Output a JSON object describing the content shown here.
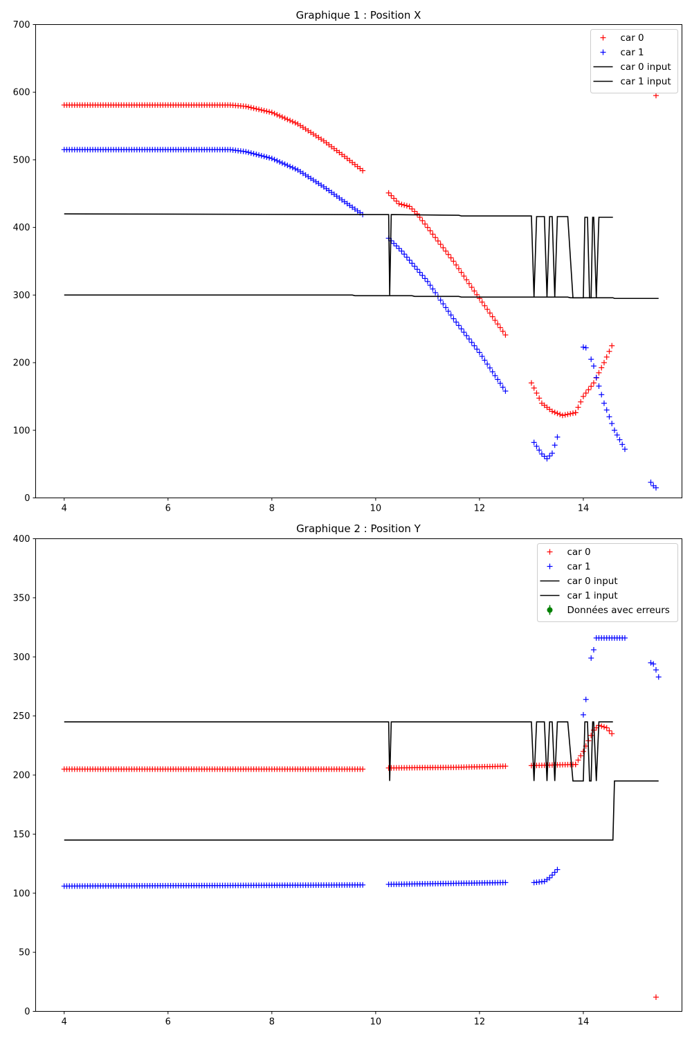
{
  "chart_data": [
    {
      "type": "scatter",
      "title": "Graphique 1 : Position X",
      "xlabel": "",
      "ylabel": "",
      "xlim": [
        3.45,
        15.9
      ],
      "ylim": [
        0,
        700
      ],
      "xticks": [
        4,
        6,
        8,
        10,
        12,
        14
      ],
      "yticks": [
        0,
        100,
        200,
        300,
        400,
        500,
        600,
        700
      ],
      "grid": false,
      "legend_position": "top-right",
      "legend": [
        "car 0",
        "car 1",
        "car 0 input",
        "car 1 input"
      ],
      "series": [
        {
          "name": "car 0",
          "kind": "marker",
          "marker": "+",
          "color": "#ff0000",
          "segments": [
            {
              "x_start": 4.0,
              "x_end": 9.75,
              "step": 0.05,
              "keys": [
                [
                  4.0,
                  581
                ],
                [
                  7.2,
                  581
                ],
                [
                  7.5,
                  579
                ],
                [
                  8.0,
                  570
                ],
                [
                  8.5,
                  553
                ],
                [
                  9.0,
                  528
                ],
                [
                  9.4,
                  505
                ],
                [
                  9.75,
                  484
                ]
              ]
            },
            {
              "x_start": 10.25,
              "x_end": 12.5,
              "step": 0.05,
              "keys": [
                [
                  10.25,
                  451
                ],
                [
                  10.45,
                  435
                ],
                [
                  10.65,
                  431
                ],
                [
                  10.8,
                  420
                ],
                [
                  11.0,
                  400
                ],
                [
                  11.5,
                  350
                ],
                [
                  12.0,
                  295
                ],
                [
                  12.5,
                  241
                ]
              ]
            },
            {
              "x_start": 13.0,
              "x_end": 13.85,
              "step": 0.05,
              "keys": [
                [
                  13.0,
                  170
                ],
                [
                  13.2,
                  140
                ],
                [
                  13.4,
                  128
                ],
                [
                  13.6,
                  122
                ],
                [
                  13.85,
                  126
                ]
              ]
            },
            {
              "x_start": 13.85,
              "x_end": 14.55,
              "step": 0.05,
              "keys": [
                [
                  13.85,
                  126
                ],
                [
                  14.0,
                  150
                ],
                [
                  14.2,
                  170
                ],
                [
                  14.4,
                  200
                ],
                [
                  14.55,
                  225
                ]
              ]
            }
          ],
          "points": [
            [
              15.4,
              595
            ]
          ]
        },
        {
          "name": "car 1",
          "kind": "marker",
          "marker": "+",
          "color": "#0000ff",
          "segments": [
            {
              "x_start": 4.0,
              "x_end": 9.75,
              "step": 0.05,
              "keys": [
                [
                  4.0,
                  515
                ],
                [
                  7.2,
                  515
                ],
                [
                  7.5,
                  512
                ],
                [
                  8.0,
                  502
                ],
                [
                  8.5,
                  485
                ],
                [
                  9.0,
                  460
                ],
                [
                  9.4,
                  438
                ],
                [
                  9.75,
                  419
                ]
              ]
            },
            {
              "x_start": 10.25,
              "x_end": 12.5,
              "step": 0.05,
              "keys": [
                [
                  10.25,
                  384
                ],
                [
                  10.5,
                  365
                ],
                [
                  11.0,
                  320
                ],
                [
                  11.5,
                  265
                ],
                [
                  12.0,
                  215
                ],
                [
                  12.5,
                  158
                ]
              ]
            },
            {
              "x_start": 13.05,
              "x_end": 13.5,
              "step": 0.05,
              "keys": [
                [
                  13.05,
                  82
                ],
                [
                  13.2,
                  65
                ],
                [
                  13.3,
                  58
                ],
                [
                  13.4,
                  66
                ],
                [
                  13.5,
                  90
                ]
              ]
            },
            {
              "x_start": 14.25,
              "x_end": 14.8,
              "step": 0.05,
              "keys": [
                [
                  14.25,
                  178
                ],
                [
                  14.4,
                  140
                ],
                [
                  14.6,
                  100
                ],
                [
                  14.8,
                  72
                ]
              ]
            }
          ],
          "points": [
            [
              14.0,
              223
            ],
            [
              14.05,
              222
            ],
            [
              14.15,
              205
            ],
            [
              14.2,
              195
            ],
            [
              15.3,
              23
            ],
            [
              15.35,
              18
            ],
            [
              15.4,
              15
            ]
          ]
        },
        {
          "name": "car 0 input",
          "kind": "line",
          "color": "#000000",
          "points": [
            [
              4.0,
              420
            ],
            [
              9.75,
              419
            ],
            [
              10.25,
              419
            ],
            [
              10.27,
              300
            ],
            [
              10.3,
              419
            ],
            [
              11.6,
              418
            ],
            [
              11.65,
              417
            ],
            [
              13.0,
              417
            ],
            [
              13.05,
              297
            ],
            [
              13.1,
              416
            ],
            [
              13.25,
              416
            ],
            [
              13.3,
              297
            ],
            [
              13.35,
              416
            ],
            [
              13.4,
              416
            ],
            [
              13.45,
              297
            ],
            [
              13.5,
              416
            ],
            [
              13.7,
              416
            ],
            [
              13.8,
              296
            ],
            [
              14.0,
              296
            ],
            [
              14.03,
              415
            ],
            [
              14.08,
              415
            ],
            [
              14.12,
              296
            ],
            [
              14.15,
              296
            ],
            [
              14.18,
              415
            ],
            [
              14.2,
              415
            ],
            [
              14.25,
              296
            ],
            [
              14.3,
              415
            ],
            [
              14.57,
              415
            ]
          ]
        },
        {
          "name": "car 1 input",
          "kind": "line",
          "color": "#000000",
          "points": [
            [
              4.0,
              300
            ],
            [
              9.55,
              300
            ],
            [
              9.6,
              299
            ],
            [
              10.7,
              299
            ],
            [
              10.75,
              298
            ],
            [
              11.6,
              298
            ],
            [
              11.65,
              297
            ],
            [
              13.7,
              297
            ],
            [
              13.75,
              296
            ],
            [
              14.57,
              296
            ],
            [
              14.6,
              295
            ],
            [
              15.45,
              295
            ]
          ]
        }
      ]
    },
    {
      "type": "scatter",
      "title": "Graphique 2 : Position Y",
      "xlabel": "",
      "ylabel": "",
      "xlim": [
        3.45,
        15.9
      ],
      "ylim": [
        0,
        400
      ],
      "xticks": [
        4,
        6,
        8,
        10,
        12,
        14
      ],
      "yticks": [
        0,
        50,
        100,
        150,
        200,
        250,
        300,
        350,
        400
      ],
      "grid": false,
      "legend_position": "top-right",
      "legend": [
        "car 0",
        "car 1",
        "car 0 input",
        "car 1 input",
        "Données avec erreurs"
      ],
      "series": [
        {
          "name": "car 0",
          "kind": "marker",
          "marker": "+",
          "color": "#ff0000",
          "segments": [
            {
              "x_start": 4.0,
              "x_end": 9.75,
              "step": 0.05,
              "keys": [
                [
                  4.0,
                  205
                ],
                [
                  9.75,
                  205
                ]
              ]
            },
            {
              "x_start": 10.25,
              "x_end": 12.5,
              "step": 0.05,
              "keys": [
                [
                  10.25,
                  206
                ],
                [
                  11.5,
                  206.5
                ],
                [
                  12.5,
                  207.5
                ]
              ]
            },
            {
              "x_start": 13.0,
              "x_end": 13.85,
              "step": 0.05,
              "keys": [
                [
                  13.0,
                  208
                ],
                [
                  13.85,
                  209
                ]
              ]
            },
            {
              "x_start": 13.85,
              "x_end": 14.55,
              "step": 0.05,
              "keys": [
                [
                  13.85,
                  209
                ],
                [
                  14.0,
                  220
                ],
                [
                  14.2,
                  238
                ],
                [
                  14.3,
                  242
                ],
                [
                  14.45,
                  240
                ],
                [
                  14.55,
                  235
                ]
              ]
            }
          ],
          "points": [
            [
              15.4,
              12
            ]
          ]
        },
        {
          "name": "car 1",
          "kind": "marker",
          "marker": "+",
          "color": "#0000ff",
          "segments": [
            {
              "x_start": 4.0,
              "x_end": 9.75,
              "step": 0.05,
              "keys": [
                [
                  4.0,
                  106
                ],
                [
                  9.75,
                  107
                ]
              ]
            },
            {
              "x_start": 10.25,
              "x_end": 12.5,
              "step": 0.05,
              "keys": [
                [
                  10.25,
                  107.5
                ],
                [
                  12.5,
                  109
                ]
              ]
            },
            {
              "x_start": 13.05,
              "x_end": 13.5,
              "step": 0.05,
              "keys": [
                [
                  13.05,
                  109
                ],
                [
                  13.25,
                  110
                ],
                [
                  13.35,
                  113
                ],
                [
                  13.5,
                  120
                ]
              ]
            },
            {
              "x_start": 14.25,
              "x_end": 14.8,
              "step": 0.05,
              "keys": [
                [
                  14.25,
                  316
                ],
                [
                  14.8,
                  316
                ]
              ]
            }
          ],
          "points": [
            [
              14.0,
              251
            ],
            [
              14.05,
              264
            ],
            [
              14.15,
              299
            ],
            [
              14.2,
              306
            ],
            [
              15.3,
              295
            ],
            [
              15.35,
              294
            ],
            [
              15.4,
              289
            ],
            [
              15.45,
              283
            ]
          ]
        },
        {
          "name": "car 0 input",
          "kind": "line",
          "color": "#000000",
          "points": [
            [
              4.0,
              245
            ],
            [
              10.25,
              245
            ],
            [
              10.27,
              195
            ],
            [
              10.3,
              245
            ],
            [
              13.0,
              245
            ],
            [
              13.05,
              195
            ],
            [
              13.1,
              245
            ],
            [
              13.25,
              245
            ],
            [
              13.3,
              195
            ],
            [
              13.35,
              245
            ],
            [
              13.4,
              245
            ],
            [
              13.45,
              195
            ],
            [
              13.5,
              245
            ],
            [
              13.7,
              245
            ],
            [
              13.8,
              195
            ],
            [
              14.0,
              195
            ],
            [
              14.03,
              245
            ],
            [
              14.08,
              245
            ],
            [
              14.12,
              195
            ],
            [
              14.15,
              195
            ],
            [
              14.18,
              245
            ],
            [
              14.2,
              245
            ],
            [
              14.25,
              195
            ],
            [
              14.3,
              245
            ],
            [
              14.57,
              245
            ]
          ]
        },
        {
          "name": "car 1 input",
          "kind": "line",
          "color": "#000000",
          "points": [
            [
              4.0,
              145
            ],
            [
              14.57,
              145
            ],
            [
              14.6,
              195
            ],
            [
              15.45,
              195
            ]
          ]
        },
        {
          "name": "Données avec erreurs",
          "kind": "errorbar",
          "color": "#008000",
          "points": []
        }
      ]
    }
  ]
}
